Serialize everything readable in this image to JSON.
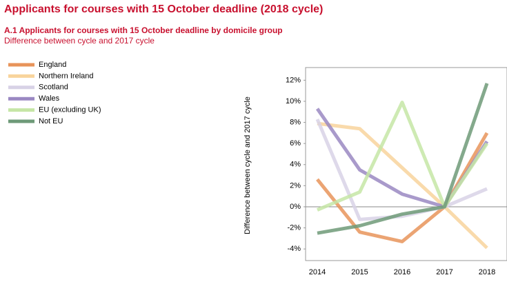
{
  "chart_data": {
    "type": "line",
    "title": "Applicants for courses with 15 October deadline (2018 cycle)",
    "subtitle": "A.1 Applicants for courses with 15 October deadline by domicile group",
    "note": "Difference between cycle and 2017 cycle",
    "y_label": "Difference between cycle and 2017 cycle",
    "categories": [
      "2014",
      "2015",
      "2016",
      "2017",
      "2018"
    ],
    "series": [
      {
        "name": "England",
        "color": "#e8945a",
        "values": [
          2.6,
          -2.4,
          -3.3,
          0,
          7.0
        ]
      },
      {
        "name": "Northern Ireland",
        "color": "#f8d49c",
        "values": [
          7.9,
          7.4,
          3.7,
          0,
          -3.9
        ]
      },
      {
        "name": "Scotland",
        "color": "#d8d2e6",
        "values": [
          8.3,
          -1.2,
          -0.9,
          0,
          1.7
        ]
      },
      {
        "name": "Wales",
        "color": "#9a88c2",
        "values": [
          9.3,
          3.5,
          1.2,
          0,
          6.2
        ]
      },
      {
        "name": "EU (excluding UK)",
        "color": "#c6e6a6",
        "values": [
          -0.3,
          1.4,
          9.9,
          0,
          6.0
        ]
      },
      {
        "name": "Not EU",
        "color": "#6e9a78",
        "values": [
          -2.5,
          -1.8,
          -0.7,
          0,
          11.7
        ]
      }
    ],
    "ylim": [
      -5.1,
      13.2
    ],
    "yticks": [
      {
        "value": -4,
        "label": "-4%"
      },
      {
        "value": -2,
        "label": "-2%"
      },
      {
        "value": 0,
        "label": "0%"
      },
      {
        "value": 2,
        "label": "2%"
      },
      {
        "value": 4,
        "label": "4%"
      },
      {
        "value": 6,
        "label": "6%"
      },
      {
        "value": 8,
        "label": "8%"
      },
      {
        "value": 10,
        "label": "10%"
      },
      {
        "value": 12,
        "label": "12%"
      }
    ]
  }
}
